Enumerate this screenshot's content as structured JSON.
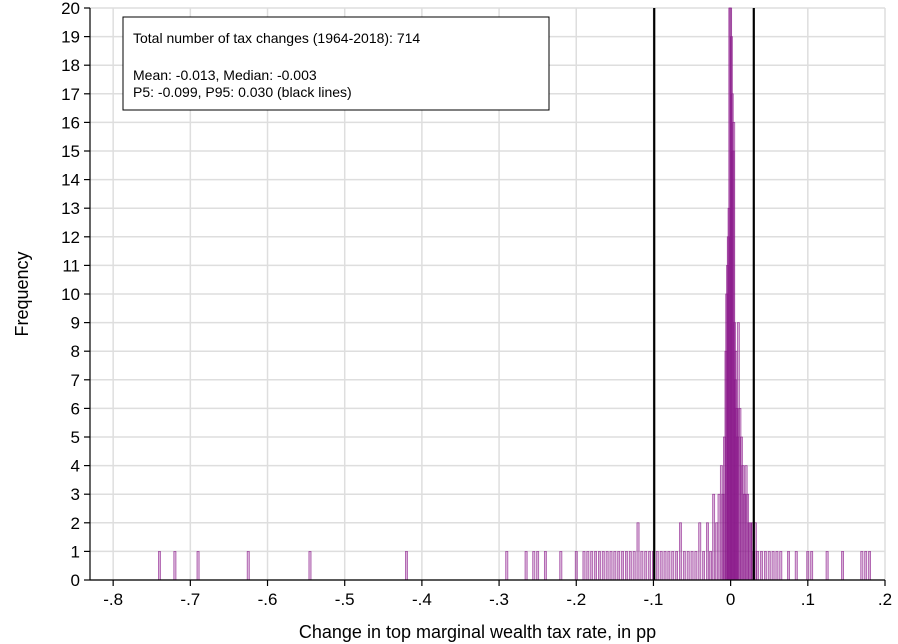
{
  "chart_data": {
    "type": "bar",
    "xlabel": "Change in top marginal wealth tax rate, in pp",
    "ylabel": "Frequency",
    "xlim": [
      -0.83,
      0.2
    ],
    "ylim": [
      0,
      20
    ],
    "x_ticks": [
      -0.8,
      -0.7,
      -0.6,
      -0.5,
      -0.4,
      -0.3,
      -0.2,
      -0.1,
      0,
      0.1,
      0.2
    ],
    "x_tick_labels": [
      "-.8",
      "-.7",
      "-.6",
      "-.5",
      "-.4",
      "-.3",
      "-.2",
      "-.1",
      "0",
      ".1",
      ".2"
    ],
    "y_ticks": [
      0,
      1,
      2,
      3,
      4,
      5,
      6,
      7,
      8,
      9,
      10,
      11,
      12,
      13,
      14,
      15,
      16,
      17,
      18,
      19,
      20
    ],
    "grid": true,
    "bar_color": "#8b1a8b",
    "reference_lines": [
      {
        "x": -0.099,
        "color": "#000000"
      },
      {
        "x": 0.03,
        "color": "#000000"
      }
    ],
    "annotation_box": {
      "position": "top-left",
      "lines": [
        "Total number of tax changes (1964-2018): 714",
        "",
        "Mean: -0.013, Median: -0.003",
        "P5: -0.099, P95: 0.030 (black lines)"
      ]
    },
    "bars": [
      {
        "x": -0.74,
        "y": 1
      },
      {
        "x": -0.72,
        "y": 1
      },
      {
        "x": -0.69,
        "y": 1
      },
      {
        "x": -0.625,
        "y": 1
      },
      {
        "x": -0.545,
        "y": 1
      },
      {
        "x": -0.42,
        "y": 1
      },
      {
        "x": -0.29,
        "y": 1
      },
      {
        "x": -0.265,
        "y": 1
      },
      {
        "x": -0.255,
        "y": 1
      },
      {
        "x": -0.25,
        "y": 1
      },
      {
        "x": -0.24,
        "y": 1
      },
      {
        "x": -0.22,
        "y": 1
      },
      {
        "x": -0.2,
        "y": 1
      },
      {
        "x": -0.19,
        "y": 1
      },
      {
        "x": -0.185,
        "y": 1
      },
      {
        "x": -0.18,
        "y": 1
      },
      {
        "x": -0.175,
        "y": 1
      },
      {
        "x": -0.17,
        "y": 1
      },
      {
        "x": -0.165,
        "y": 1
      },
      {
        "x": -0.16,
        "y": 1
      },
      {
        "x": -0.155,
        "y": 1
      },
      {
        "x": -0.15,
        "y": 1
      },
      {
        "x": -0.145,
        "y": 1
      },
      {
        "x": -0.14,
        "y": 1
      },
      {
        "x": -0.135,
        "y": 1
      },
      {
        "x": -0.13,
        "y": 1
      },
      {
        "x": -0.125,
        "y": 1
      },
      {
        "x": -0.12,
        "y": 2
      },
      {
        "x": -0.115,
        "y": 1
      },
      {
        "x": -0.11,
        "y": 1
      },
      {
        "x": -0.105,
        "y": 1
      },
      {
        "x": -0.1,
        "y": 1
      },
      {
        "x": -0.095,
        "y": 1
      },
      {
        "x": -0.09,
        "y": 1
      },
      {
        "x": -0.085,
        "y": 1
      },
      {
        "x": -0.08,
        "y": 1
      },
      {
        "x": -0.075,
        "y": 1
      },
      {
        "x": -0.07,
        "y": 1
      },
      {
        "x": -0.065,
        "y": 2
      },
      {
        "x": -0.06,
        "y": 1
      },
      {
        "x": -0.055,
        "y": 1
      },
      {
        "x": -0.05,
        "y": 1
      },
      {
        "x": -0.045,
        "y": 1
      },
      {
        "x": -0.04,
        "y": 2
      },
      {
        "x": -0.035,
        "y": 1
      },
      {
        "x": -0.03,
        "y": 2
      },
      {
        "x": -0.026,
        "y": 1
      },
      {
        "x": -0.022,
        "y": 3
      },
      {
        "x": -0.018,
        "y": 2
      },
      {
        "x": -0.015,
        "y": 3
      },
      {
        "x": -0.012,
        "y": 4
      },
      {
        "x": -0.01,
        "y": 3
      },
      {
        "x": -0.008,
        "y": 5
      },
      {
        "x": -0.006,
        "y": 8
      },
      {
        "x": -0.005,
        "y": 10
      },
      {
        "x": -0.004,
        "y": 11
      },
      {
        "x": -0.003,
        "y": 12
      },
      {
        "x": -0.002,
        "y": 13
      },
      {
        "x": -0.001,
        "y": 20
      },
      {
        "x": 0.0,
        "y": 20
      },
      {
        "x": 0.001,
        "y": 19
      },
      {
        "x": 0.002,
        "y": 17
      },
      {
        "x": 0.003,
        "y": 15
      },
      {
        "x": 0.004,
        "y": 16
      },
      {
        "x": 0.005,
        "y": 9
      },
      {
        "x": 0.006,
        "y": 7
      },
      {
        "x": 0.007,
        "y": 8
      },
      {
        "x": 0.008,
        "y": 6
      },
      {
        "x": 0.009,
        "y": 5
      },
      {
        "x": 0.01,
        "y": 9
      },
      {
        "x": 0.012,
        "y": 6
      },
      {
        "x": 0.014,
        "y": 5
      },
      {
        "x": 0.016,
        "y": 4
      },
      {
        "x": 0.018,
        "y": 3
      },
      {
        "x": 0.02,
        "y": 4
      },
      {
        "x": 0.022,
        "y": 3
      },
      {
        "x": 0.024,
        "y": 2
      },
      {
        "x": 0.026,
        "y": 2
      },
      {
        "x": 0.028,
        "y": 2
      },
      {
        "x": 0.03,
        "y": 1
      },
      {
        "x": 0.032,
        "y": 2
      },
      {
        "x": 0.035,
        "y": 1
      },
      {
        "x": 0.04,
        "y": 1
      },
      {
        "x": 0.045,
        "y": 1
      },
      {
        "x": 0.05,
        "y": 1
      },
      {
        "x": 0.055,
        "y": 1
      },
      {
        "x": 0.06,
        "y": 1
      },
      {
        "x": 0.065,
        "y": 1
      },
      {
        "x": 0.075,
        "y": 1
      },
      {
        "x": 0.085,
        "y": 1
      },
      {
        "x": 0.1,
        "y": 1
      },
      {
        "x": 0.105,
        "y": 1
      },
      {
        "x": 0.125,
        "y": 1
      },
      {
        "x": 0.145,
        "y": 1
      },
      {
        "x": 0.17,
        "y": 1
      },
      {
        "x": 0.175,
        "y": 1
      },
      {
        "x": 0.18,
        "y": 1
      }
    ]
  }
}
